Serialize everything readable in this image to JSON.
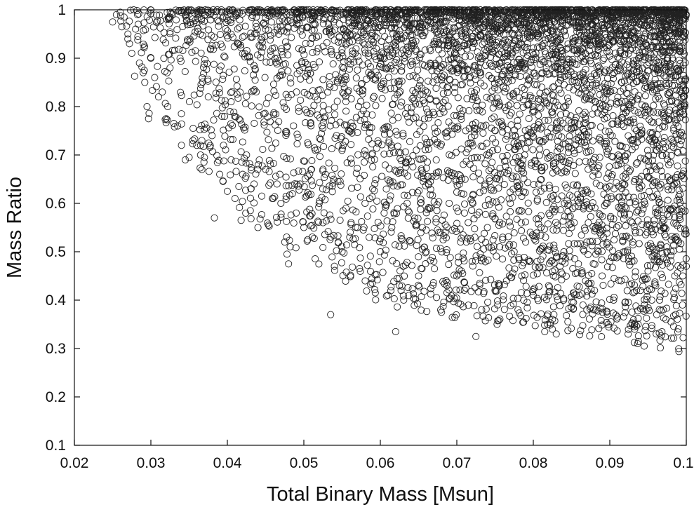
{
  "chart_data": {
    "type": "scatter",
    "title": "",
    "xlabel": "Total Binary Mass [Msun]",
    "ylabel": "Mass Ratio",
    "xlim": [
      0.02,
      0.1
    ],
    "ylim": [
      0.1,
      1
    ],
    "xticks": [
      0.02,
      0.03,
      0.04,
      0.05,
      0.06,
      0.07,
      0.08,
      0.09,
      0.1
    ],
    "yticks": [
      0.1,
      0.2,
      0.3,
      0.4,
      0.5,
      0.6,
      0.7,
      0.8,
      0.9,
      1
    ],
    "xtick_labels": [
      "0.02",
      "0.03",
      "0.04",
      "0.05",
      "0.06",
      "0.07",
      "0.08",
      "0.09",
      "0.1"
    ],
    "ytick_labels": [
      "0.1",
      "0.2",
      "0.3",
      "0.4",
      "0.5",
      "0.6",
      "0.7",
      "0.8",
      "0.9",
      "1"
    ],
    "grid": false,
    "legend": "none",
    "marker": "open-circle",
    "marker_color": "#222222",
    "series": [
      {
        "points": [
          [
            0.025,
            0.975
          ],
          [
            0.0255,
            0.99
          ],
          [
            0.026,
            0.995
          ],
          [
            0.0262,
            0.965
          ],
          [
            0.0265,
            0.985
          ],
          [
            0.027,
            0.95
          ],
          [
            0.0272,
            0.93
          ],
          [
            0.0275,
            0.91
          ],
          [
            0.028,
            0.96
          ],
          [
            0.0283,
            0.945
          ],
          [
            0.0285,
            0.89
          ],
          [
            0.029,
            0.87
          ],
          [
            0.0292,
            0.85
          ],
          [
            0.0295,
            0.8
          ],
          [
            0.0297,
            0.775
          ],
          [
            0.03,
            0.9
          ],
          [
            0.0305,
            0.86
          ],
          [
            0.031,
            0.82
          ],
          [
            0.0315,
            0.83
          ],
          [
            0.032,
            0.775
          ],
          [
            0.0322,
            0.8
          ],
          [
            0.0325,
            0.88
          ],
          [
            0.033,
            0.765
          ],
          [
            0.0335,
            0.76
          ],
          [
            0.034,
            0.72
          ],
          [
            0.0345,
            0.69
          ],
          [
            0.035,
            0.695
          ],
          [
            0.0355,
            0.73
          ],
          [
            0.036,
            0.72
          ],
          [
            0.0365,
            0.7
          ],
          [
            0.037,
            0.695
          ],
          [
            0.0375,
            0.82
          ],
          [
            0.038,
            0.74
          ],
          [
            0.0383,
            0.57
          ],
          [
            0.039,
            0.66
          ],
          [
            0.0395,
            0.72
          ],
          [
            0.04,
            0.625
          ],
          [
            0.0405,
            0.69
          ],
          [
            0.041,
            0.61
          ],
          [
            0.0415,
            0.635
          ],
          [
            0.0418,
            0.565
          ],
          [
            0.042,
            0.66
          ],
          [
            0.0425,
            0.7
          ],
          [
            0.043,
            0.585
          ],
          [
            0.0435,
            0.64
          ],
          [
            0.044,
            0.55
          ],
          [
            0.0445,
            0.615
          ],
          [
            0.045,
            0.67
          ],
          [
            0.046,
            0.61
          ],
          [
            0.0465,
            0.64
          ],
          [
            0.047,
            0.6
          ],
          [
            0.0475,
            0.52
          ],
          [
            0.0478,
            0.495
          ],
          [
            0.048,
            0.475
          ],
          [
            0.0485,
            0.62
          ],
          [
            0.049,
            0.58
          ],
          [
            0.0495,
            0.64
          ],
          [
            0.05,
            0.55
          ],
          [
            0.0505,
            0.525
          ],
          [
            0.051,
            0.67
          ],
          [
            0.052,
            0.6
          ],
          [
            0.0525,
            0.56
          ],
          [
            0.0535,
            0.37
          ],
          [
            0.054,
            0.47
          ],
          [
            0.0545,
            0.52
          ],
          [
            0.055,
            0.5
          ],
          [
            0.0555,
            0.59
          ],
          [
            0.056,
            0.53
          ],
          [
            0.057,
            0.55
          ],
          [
            0.058,
            0.6
          ],
          [
            0.059,
            0.63
          ],
          [
            0.06,
            0.5
          ],
          [
            0.0605,
            0.58
          ],
          [
            0.061,
            0.41
          ],
          [
            0.0615,
            0.55
          ],
          [
            0.062,
            0.335
          ],
          [
            0.0625,
            0.43
          ],
          [
            0.063,
            0.47
          ],
          [
            0.0635,
            0.6
          ],
          [
            0.064,
            0.52
          ],
          [
            0.065,
            0.45
          ],
          [
            0.0655,
            0.55
          ],
          [
            0.066,
            0.5
          ],
          [
            0.067,
            0.48
          ],
          [
            0.068,
            0.375
          ],
          [
            0.0685,
            0.54
          ],
          [
            0.069,
            0.6
          ],
          [
            0.07,
            0.45
          ],
          [
            0.0705,
            0.52
          ],
          [
            0.071,
            0.58
          ],
          [
            0.072,
            0.48
          ],
          [
            0.0725,
            0.325
          ],
          [
            0.073,
            0.435
          ],
          [
            0.074,
            0.55
          ],
          [
            0.075,
            0.42
          ],
          [
            0.0755,
            0.43
          ],
          [
            0.076,
            0.53
          ],
          [
            0.0765,
            0.44
          ],
          [
            0.077,
            0.6
          ],
          [
            0.0775,
            0.5
          ],
          [
            0.078,
            0.38
          ],
          [
            0.0785,
            0.45
          ],
          [
            0.079,
            0.52
          ],
          [
            0.08,
            0.41
          ],
          [
            0.0805,
            0.48
          ],
          [
            0.081,
            0.55
          ],
          [
            0.0815,
            0.335
          ],
          [
            0.082,
            0.43
          ],
          [
            0.0825,
            0.36
          ],
          [
            0.083,
            0.33
          ],
          [
            0.0835,
            0.47
          ],
          [
            0.084,
            0.5
          ],
          [
            0.085,
            0.55
          ],
          [
            0.0855,
            0.455
          ],
          [
            0.086,
            0.41
          ],
          [
            0.0865,
            0.39
          ],
          [
            0.087,
            0.52
          ],
          [
            0.088,
            0.42
          ],
          [
            0.0885,
            0.5
          ],
          [
            0.089,
            0.45
          ],
          [
            0.09,
            0.48
          ],
          [
            0.0905,
            0.4
          ],
          [
            0.091,
            0.365
          ],
          [
            0.0915,
            0.44
          ],
          [
            0.092,
            0.5
          ],
          [
            0.0925,
            0.48
          ],
          [
            0.093,
            0.52
          ],
          [
            0.0935,
            0.42
          ],
          [
            0.0945,
            0.305
          ],
          [
            0.095,
            0.46
          ],
          [
            0.0955,
            0.4
          ],
          [
            0.096,
            0.43
          ],
          [
            0.0965,
            0.48
          ],
          [
            0.097,
            0.38
          ],
          [
            0.0975,
            0.5
          ],
          [
            0.098,
            0.355
          ],
          [
            0.0985,
            0.45
          ],
          [
            0.099,
            0.52
          ],
          [
            0.0995,
            0.39
          ],
          [
            0.1,
            0.47
          ]
        ]
      }
    ],
    "density_envelope": {
      "q_top": 1.0,
      "q_floor_vs_mass": [
        [
          0.025,
          0.97
        ],
        [
          0.03,
          0.78
        ],
        [
          0.035,
          0.7
        ],
        [
          0.04,
          0.62
        ],
        [
          0.045,
          0.55
        ],
        [
          0.05,
          0.5
        ],
        [
          0.06,
          0.4
        ],
        [
          0.07,
          0.37
        ],
        [
          0.08,
          0.35
        ],
        [
          0.09,
          0.33
        ],
        [
          0.1,
          0.3
        ]
      ],
      "point_count": 5200
    }
  }
}
